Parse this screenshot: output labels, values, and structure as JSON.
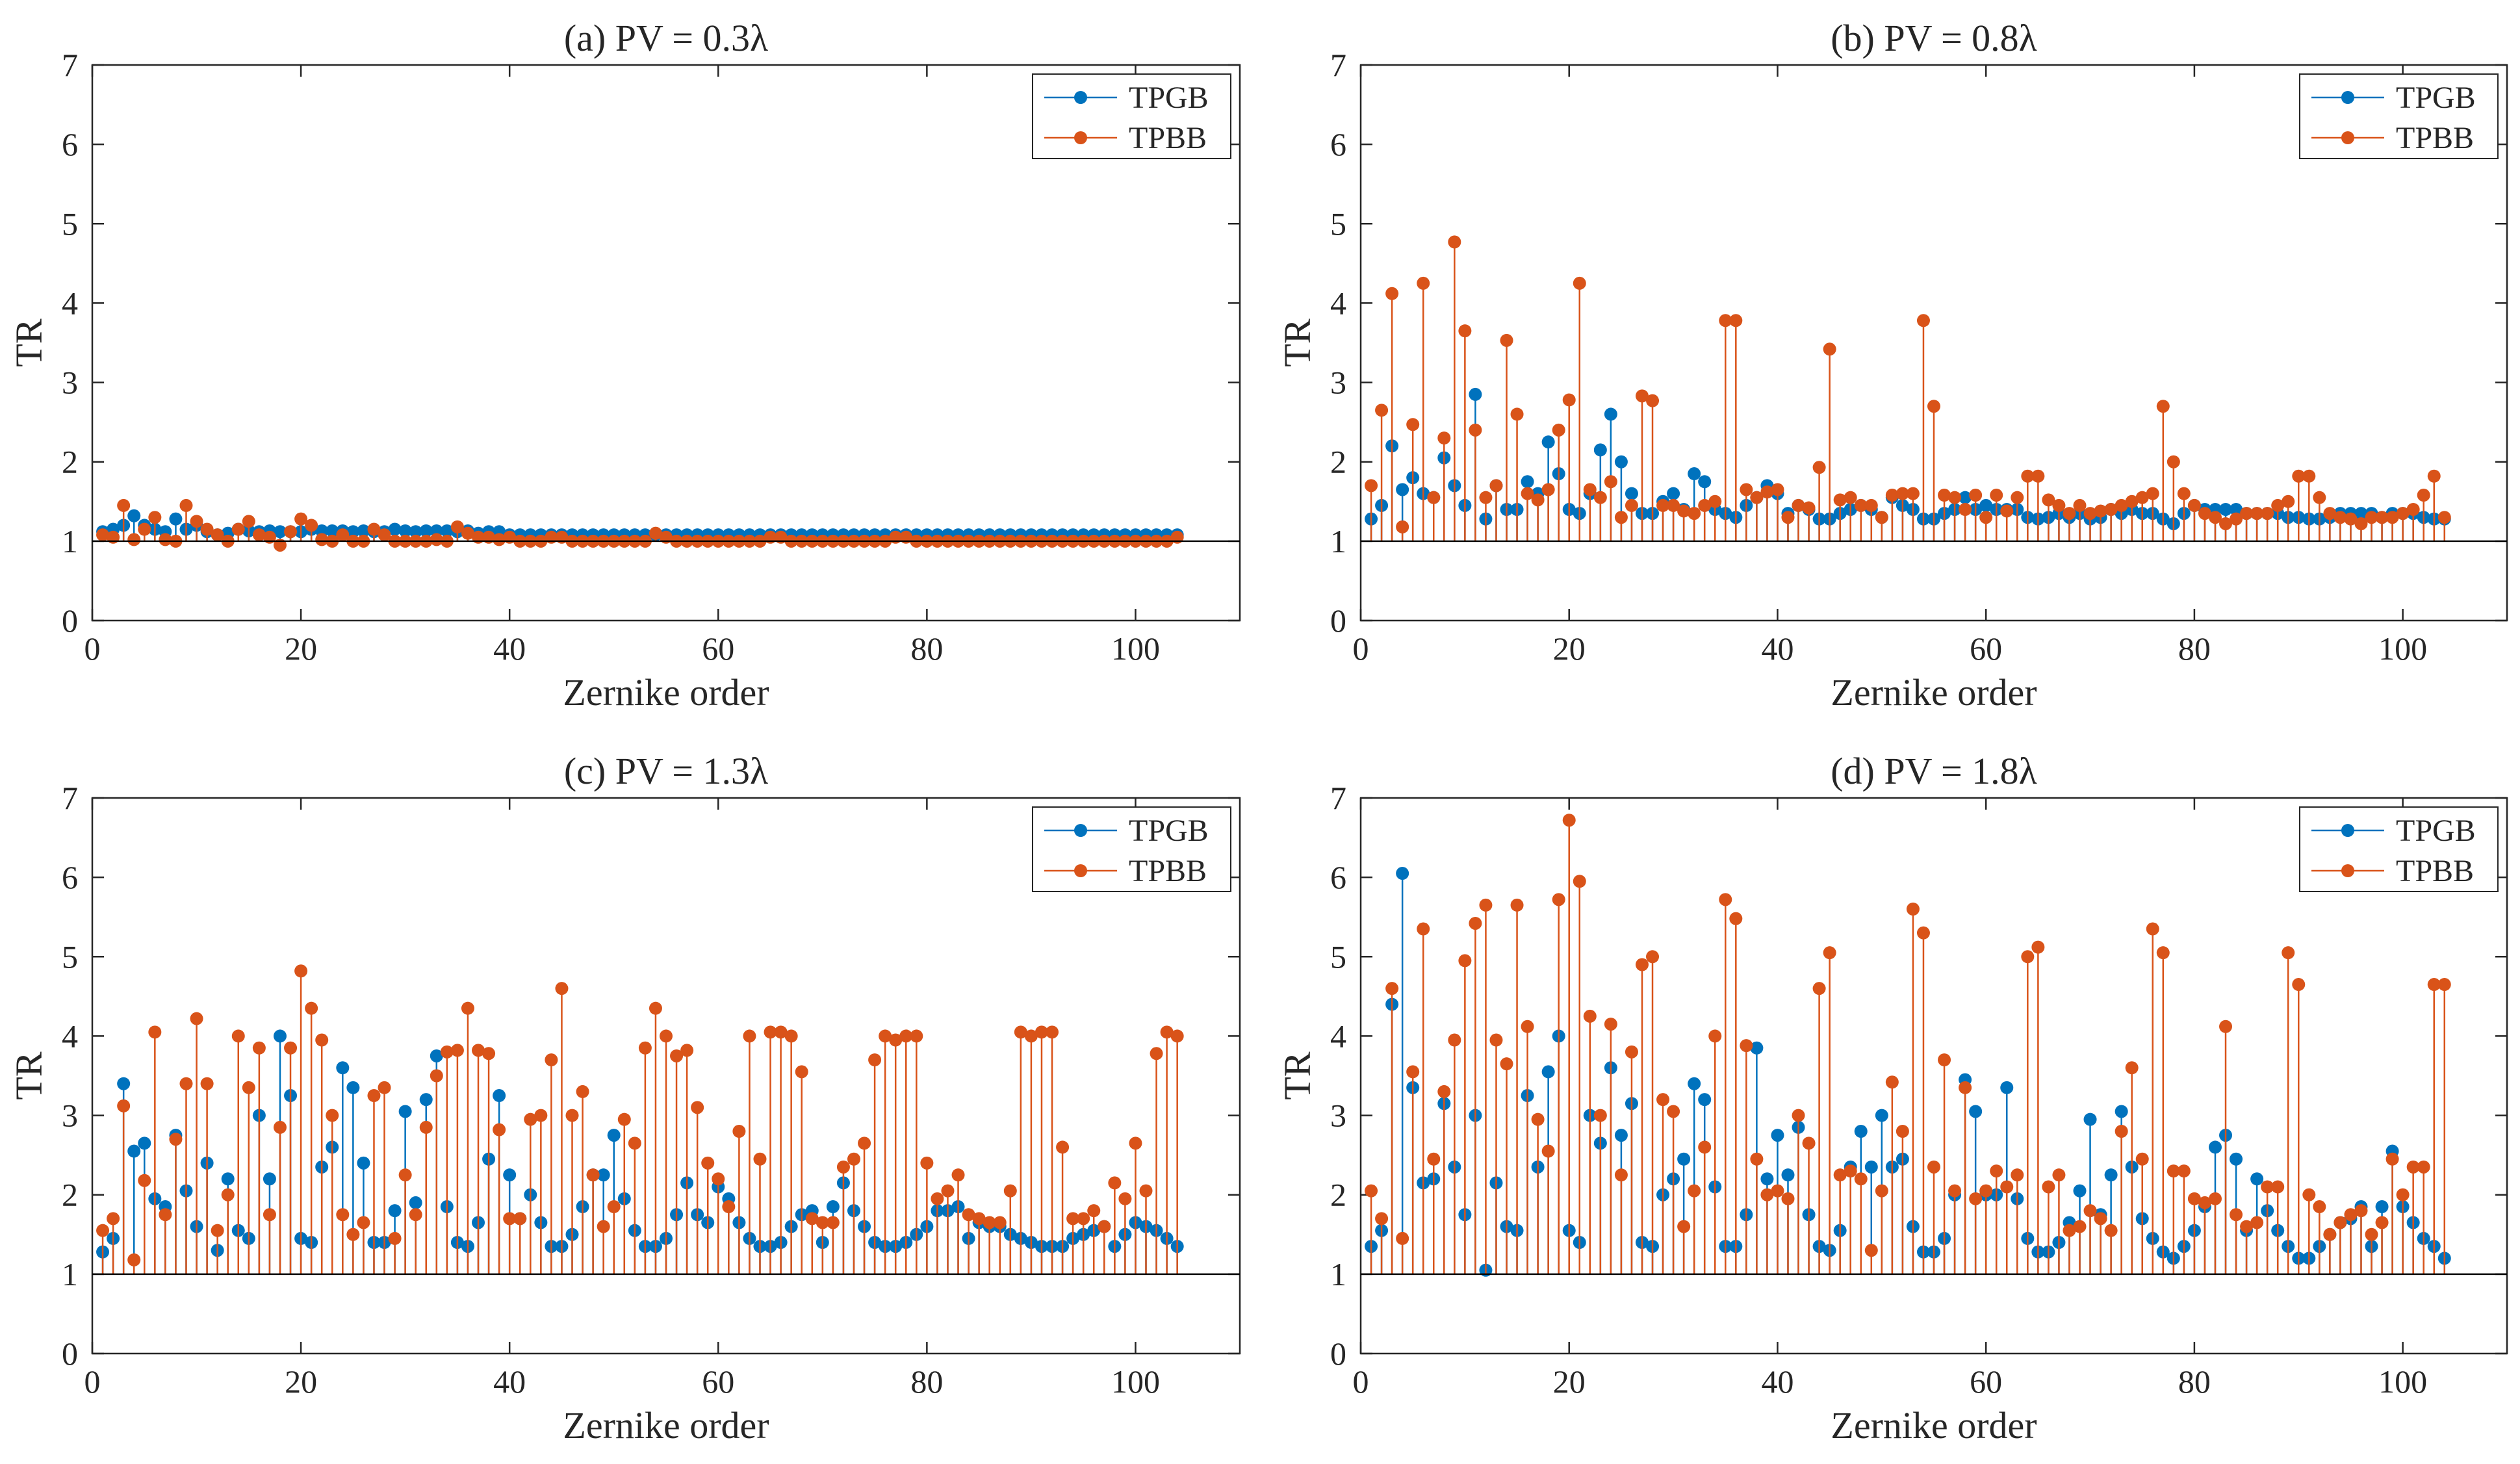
{
  "colors": {
    "TPGB": "#0072BD",
    "TPBB": "#D95319",
    "axis": "#262626",
    "baseline": "#000000"
  },
  "chart_data": [
    {
      "type": "stem",
      "title": "(a) PV = 0.3λ",
      "xlabel": "Zernike order",
      "ylabel": "TR",
      "xlim": [
        0,
        110
      ],
      "ylim": [
        0,
        7
      ],
      "xticks": [
        0,
        20,
        40,
        60,
        80,
        100
      ],
      "yticks": [
        0,
        1,
        2,
        3,
        4,
        5,
        6,
        7
      ],
      "baseline": 1,
      "legend": {
        "position": "top-right",
        "entries": [
          "TPGB",
          "TPBB"
        ]
      },
      "series": [
        {
          "name": "TPGB",
          "x_start": 1,
          "values": [
            1.12,
            1.15,
            1.2,
            1.32,
            1.2,
            1.15,
            1.12,
            1.28,
            1.15,
            1.2,
            1.12,
            1.08,
            1.1,
            1.15,
            1.13,
            1.12,
            1.13,
            1.12,
            1.12,
            1.12,
            1.15,
            1.13,
            1.13,
            1.13,
            1.12,
            1.13,
            1.12,
            1.12,
            1.15,
            1.13,
            1.12,
            1.13,
            1.13,
            1.13,
            1.12,
            1.13,
            1.1,
            1.12,
            1.12,
            1.08,
            1.08,
            1.08,
            1.08,
            1.08,
            1.08,
            1.08,
            1.08,
            1.08,
            1.08,
            1.08,
            1.08,
            1.08,
            1.08,
            1.08,
            1.08,
            1.08,
            1.08,
            1.08,
            1.08,
            1.08,
            1.08,
            1.08,
            1.08,
            1.08,
            1.08,
            1.08,
            1.08,
            1.08,
            1.08,
            1.08,
            1.08,
            1.08,
            1.08,
            1.08,
            1.08,
            1.08,
            1.08,
            1.08,
            1.08,
            1.08,
            1.08,
            1.08,
            1.08,
            1.08,
            1.08,
            1.08,
            1.08,
            1.08,
            1.08,
            1.08,
            1.08,
            1.08,
            1.08,
            1.08,
            1.08,
            1.08,
            1.08,
            1.08,
            1.08,
            1.08,
            1.08,
            1.08,
            1.08,
            1.08
          ]
        },
        {
          "name": "TPBB",
          "x_start": 1,
          "values": [
            1.08,
            1.05,
            1.45,
            1.02,
            1.15,
            1.3,
            1.02,
            1.0,
            1.45,
            1.25,
            1.15,
            1.08,
            1.0,
            1.15,
            1.25,
            1.08,
            1.05,
            0.95,
            1.12,
            1.28,
            1.2,
            1.02,
            1.0,
            1.08,
            1.0,
            1.0,
            1.15,
            1.08,
            1.0,
            1.0,
            1.0,
            1.0,
            1.02,
            1.0,
            1.18,
            1.1,
            1.05,
            1.05,
            1.02,
            1.05,
            1.0,
            1.0,
            1.0,
            1.05,
            1.05,
            1.0,
            1.0,
            1.0,
            1.0,
            1.0,
            1.0,
            1.0,
            1.0,
            1.1,
            1.05,
            1.0,
            1.0,
            1.0,
            1.0,
            1.0,
            1.0,
            1.0,
            1.0,
            1.0,
            1.05,
            1.05,
            1.0,
            1.0,
            1.0,
            1.0,
            1.0,
            1.0,
            1.0,
            1.0,
            1.0,
            1.0,
            1.05,
            1.05,
            1.0,
            1.0,
            1.0,
            1.0,
            1.0,
            1.0,
            1.0,
            1.0,
            1.0,
            1.0,
            1.0,
            1.0,
            1.0,
            1.0,
            1.0,
            1.0,
            1.0,
            1.0,
            1.0,
            1.0,
            1.0,
            1.0,
            1.0,
            1.0,
            1.0,
            1.05
          ]
        }
      ]
    },
    {
      "type": "stem",
      "title": "(b) PV = 0.8λ",
      "xlabel": "Zernike order",
      "ylabel": "TR",
      "xlim": [
        0,
        110
      ],
      "ylim": [
        0,
        7
      ],
      "xticks": [
        0,
        20,
        40,
        60,
        80,
        100
      ],
      "yticks": [
        0,
        1,
        2,
        3,
        4,
        5,
        6,
        7
      ],
      "baseline": 1,
      "legend": {
        "position": "top-right",
        "entries": [
          "TPGB",
          "TPBB"
        ]
      },
      "series": [
        {
          "name": "TPGB",
          "x_start": 1,
          "values": [
            1.28,
            1.45,
            2.2,
            1.65,
            1.8,
            1.6,
            1.55,
            2.05,
            1.7,
            1.45,
            2.85,
            1.28,
            1.7,
            1.4,
            1.4,
            1.75,
            1.6,
            2.25,
            1.85,
            1.4,
            1.35,
            1.6,
            2.15,
            2.6,
            2.0,
            1.6,
            1.35,
            1.35,
            1.5,
            1.6,
            1.4,
            1.85,
            1.75,
            1.4,
            1.35,
            1.3,
            1.45,
            1.55,
            1.7,
            1.6,
            1.35,
            1.45,
            1.4,
            1.28,
            1.28,
            1.35,
            1.4,
            1.45,
            1.4,
            1.3,
            1.55,
            1.45,
            1.4,
            1.28,
            1.28,
            1.35,
            1.4,
            1.55,
            1.4,
            1.45,
            1.4,
            1.4,
            1.4,
            1.3,
            1.28,
            1.3,
            1.35,
            1.3,
            1.35,
            1.28,
            1.3,
            1.4,
            1.35,
            1.4,
            1.35,
            1.35,
            1.28,
            1.22,
            1.35,
            1.45,
            1.4,
            1.4,
            1.4,
            1.4,
            1.35,
            1.35,
            1.35,
            1.35,
            1.3,
            1.3,
            1.28,
            1.28,
            1.3,
            1.35,
            1.35,
            1.35,
            1.35,
            1.3,
            1.35,
            1.35,
            1.35,
            1.3,
            1.28,
            1.28
          ]
        },
        {
          "name": "TPBB",
          "x_start": 1,
          "values": [
            1.7,
            2.65,
            4.12,
            1.18,
            2.47,
            4.25,
            1.55,
            2.3,
            4.77,
            3.65,
            2.4,
            1.55,
            1.7,
            3.53,
            2.6,
            1.6,
            1.52,
            1.65,
            2.4,
            2.78,
            4.25,
            1.65,
            1.55,
            1.75,
            1.3,
            1.45,
            2.83,
            2.77,
            1.45,
            1.45,
            1.38,
            1.35,
            1.45,
            1.5,
            3.78,
            3.78,
            1.65,
            1.55,
            1.62,
            1.65,
            1.3,
            1.45,
            1.42,
            1.93,
            3.42,
            1.52,
            1.55,
            1.45,
            1.45,
            1.3,
            1.58,
            1.6,
            1.6,
            3.78,
            2.7,
            1.58,
            1.55,
            1.4,
            1.58,
            1.3,
            1.58,
            1.38,
            1.55,
            1.82,
            1.82,
            1.52,
            1.45,
            1.35,
            1.45,
            1.35,
            1.38,
            1.4,
            1.45,
            1.5,
            1.55,
            1.6,
            2.7,
            2.0,
            1.6,
            1.45,
            1.35,
            1.3,
            1.22,
            1.28,
            1.35,
            1.35,
            1.35,
            1.45,
            1.5,
            1.82,
            1.82,
            1.55,
            1.35,
            1.3,
            1.28,
            1.22,
            1.3,
            1.3,
            1.3,
            1.35,
            1.4,
            1.58,
            1.82,
            1.3
          ]
        }
      ]
    },
    {
      "type": "stem",
      "title": "(c) PV = 1.3λ",
      "xlabel": "Zernike order",
      "ylabel": "TR",
      "xlim": [
        0,
        110
      ],
      "ylim": [
        0,
        7
      ],
      "xticks": [
        0,
        20,
        40,
        60,
        80,
        100
      ],
      "yticks": [
        0,
        1,
        2,
        3,
        4,
        5,
        6,
        7
      ],
      "baseline": 1,
      "legend": {
        "position": "top-right",
        "entries": [
          "TPGB",
          "TPBB"
        ]
      },
      "series": [
        {
          "name": "TPGB",
          "x_start": 1,
          "values": [
            1.28,
            1.45,
            3.4,
            2.55,
            2.65,
            1.95,
            1.85,
            2.75,
            2.05,
            1.6,
            2.4,
            1.3,
            2.2,
            1.55,
            1.45,
            3.0,
            2.2,
            4.0,
            3.25,
            1.45,
            1.4,
            2.35,
            2.6,
            3.6,
            3.35,
            2.4,
            1.4,
            1.4,
            1.8,
            3.05,
            1.9,
            3.2,
            3.75,
            1.85,
            1.4,
            1.35,
            1.65,
            2.45,
            3.25,
            2.25,
            1.7,
            2.0,
            1.65,
            1.35,
            1.35,
            1.5,
            1.85,
            2.25,
            2.25,
            2.75,
            1.95,
            1.55,
            1.35,
            1.35,
            1.45,
            1.75,
            2.15,
            1.75,
            1.65,
            2.1,
            1.95,
            1.65,
            1.45,
            1.35,
            1.35,
            1.4,
            1.6,
            1.75,
            1.8,
            1.4,
            1.85,
            2.15,
            1.8,
            1.6,
            1.4,
            1.35,
            1.35,
            1.4,
            1.5,
            1.6,
            1.8,
            1.8,
            1.85,
            1.45,
            1.65,
            1.6,
            1.6,
            1.5,
            1.45,
            1.4,
            1.35,
            1.35,
            1.35,
            1.45,
            1.5,
            1.55,
            1.6,
            1.35,
            1.5,
            1.65,
            1.6,
            1.55,
            1.45,
            1.35
          ]
        },
        {
          "name": "TPBB",
          "x_start": 1,
          "values": [
            1.55,
            1.7,
            3.12,
            1.18,
            2.18,
            4.05,
            1.75,
            2.7,
            3.4,
            4.22,
            3.4,
            1.55,
            2.0,
            4.0,
            3.35,
            3.85,
            1.75,
            2.85,
            3.85,
            4.82,
            4.35,
            3.95,
            3.0,
            1.75,
            1.5,
            1.65,
            3.25,
            3.35,
            1.45,
            2.25,
            1.75,
            2.85,
            3.5,
            3.8,
            3.82,
            4.35,
            3.82,
            3.78,
            2.82,
            1.7,
            1.7,
            2.95,
            3.0,
            3.7,
            4.6,
            3.0,
            3.3,
            2.25,
            1.6,
            1.85,
            2.95,
            2.65,
            3.85,
            4.35,
            4.0,
            3.75,
            3.82,
            3.1,
            2.4,
            2.2,
            1.85,
            2.8,
            4.0,
            2.45,
            4.05,
            4.05,
            4.0,
            3.55,
            1.7,
            1.65,
            1.65,
            2.35,
            2.45,
            2.65,
            3.7,
            4.0,
            3.95,
            4.0,
            4.0,
            2.4,
            1.95,
            2.05,
            2.25,
            1.75,
            1.7,
            1.65,
            1.65,
            2.05,
            4.05,
            4.0,
            4.05,
            4.05,
            2.6,
            1.7,
            1.7,
            1.8,
            1.6,
            2.15,
            1.95,
            2.65,
            2.05,
            3.78,
            4.05,
            4.0
          ]
        }
      ]
    },
    {
      "type": "stem",
      "title": "(d) PV = 1.8λ",
      "xlabel": "Zernike order",
      "ylabel": "TR",
      "xlim": [
        0,
        110
      ],
      "ylim": [
        0,
        7
      ],
      "xticks": [
        0,
        20,
        40,
        60,
        80,
        100
      ],
      "yticks": [
        0,
        1,
        2,
        3,
        4,
        5,
        6,
        7
      ],
      "baseline": 1,
      "legend": {
        "position": "top-right",
        "entries": [
          "TPGB",
          "TPBB"
        ]
      },
      "series": [
        {
          "name": "TPGB",
          "x_start": 1,
          "values": [
            1.35,
            1.55,
            4.4,
            6.05,
            3.35,
            2.15,
            2.2,
            3.15,
            2.35,
            1.75,
            3.0,
            1.05,
            2.15,
            1.6,
            1.55,
            3.25,
            2.35,
            3.55,
            4.0,
            1.55,
            1.4,
            3.0,
            2.65,
            3.6,
            2.75,
            3.15,
            1.4,
            1.35,
            2.0,
            2.2,
            2.45,
            3.4,
            3.2,
            2.1,
            1.35,
            1.35,
            1.75,
            3.85,
            2.2,
            2.75,
            2.25,
            2.85,
            1.75,
            1.35,
            1.3,
            1.55,
            2.35,
            2.8,
            2.35,
            3.0,
            2.35,
            2.45,
            1.6,
            1.28,
            1.28,
            1.45,
            2.0,
            3.45,
            3.05,
            2.0,
            2.0,
            3.35,
            1.95,
            1.45,
            1.28,
            1.28,
            1.4,
            1.65,
            2.05,
            2.95,
            1.75,
            2.25,
            3.05,
            2.35,
            1.7,
            1.45,
            1.28,
            1.2,
            1.35,
            1.55,
            1.85,
            2.6,
            2.75,
            2.45,
            1.55,
            2.2,
            1.8,
            1.55,
            1.35,
            1.2,
            1.2,
            1.35,
            1.5,
            1.65,
            1.7,
            1.85,
            1.35,
            1.85,
            2.55,
            1.85,
            1.65,
            1.45,
            1.35,
            1.2
          ]
        },
        {
          "name": "TPBB",
          "x_start": 1,
          "values": [
            2.05,
            1.7,
            4.6,
            1.45,
            3.55,
            5.35,
            2.45,
            3.3,
            3.95,
            4.95,
            5.42,
            5.65,
            3.95,
            3.65,
            5.65,
            4.12,
            2.95,
            2.55,
            5.72,
            6.72,
            5.95,
            4.25,
            3.0,
            4.15,
            2.25,
            3.8,
            4.9,
            5.0,
            3.2,
            3.05,
            1.6,
            2.05,
            2.6,
            4.0,
            5.72,
            5.48,
            3.88,
            2.45,
            2.0,
            2.05,
            1.95,
            3.0,
            2.65,
            4.6,
            5.05,
            2.25,
            2.3,
            2.2,
            1.3,
            2.05,
            3.42,
            2.8,
            5.6,
            5.3,
            2.35,
            3.7,
            2.05,
            3.35,
            1.95,
            2.05,
            2.3,
            2.1,
            2.25,
            5.0,
            5.12,
            2.1,
            2.25,
            1.55,
            1.6,
            1.8,
            1.7,
            1.55,
            2.8,
            3.6,
            2.45,
            5.35,
            5.05,
            2.3,
            2.3,
            1.95,
            1.9,
            1.95,
            4.12,
            1.75,
            1.6,
            1.65,
            2.1,
            2.1,
            5.05,
            4.65,
            2.0,
            1.85,
            1.5,
            1.65,
            1.75,
            1.8,
            1.5,
            1.65,
            2.45,
            2.0,
            2.35,
            2.35,
            4.65,
            4.65
          ]
        }
      ]
    }
  ]
}
